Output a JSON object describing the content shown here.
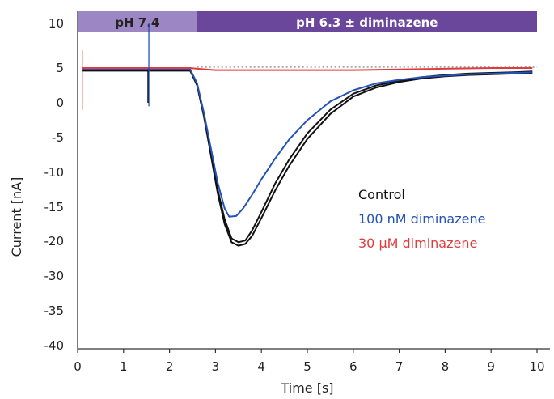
{
  "chart_data": {
    "type": "line",
    "xlabel": "Time [s]",
    "ylabel": "Current [nA]",
    "xlim": [
      0,
      10
    ],
    "x_ticks": [
      "0",
      "1",
      "2",
      "3",
      "4",
      "5",
      "6",
      "7",
      "8",
      "9",
      "10"
    ],
    "y_ticks": [
      {
        "value": 10,
        "label": "10"
      },
      {
        "value": 5,
        "label": "5"
      },
      {
        "value": 0,
        "label": "0"
      },
      {
        "value": -5,
        "label": "-5"
      },
      {
        "value": -10,
        "label": "-10"
      },
      {
        "value": -15,
        "label": "-15"
      },
      {
        "value": -20,
        "label": "-20"
      },
      {
        "value": -30,
        "label": "-30"
      },
      {
        "value": -35,
        "label": "-35"
      },
      {
        "value": -40,
        "label": "-40"
      }
    ],
    "grid": false,
    "bars": [
      {
        "label": "pH 7.4",
        "x_start": 0,
        "x_end": 2.6,
        "color": "#9d86c4",
        "text_color": "#222222"
      },
      {
        "label": "pH 6.3 ± diminazene",
        "x_start": 2.6,
        "x_end": 10,
        "color": "#6b479b",
        "text_color": "#ffffff"
      }
    ],
    "reference_line": {
      "y": 5.1,
      "style": "dotted",
      "color": "#999999"
    },
    "legend_position": "right",
    "legend": [
      {
        "label": "Control",
        "color": "#111111"
      },
      {
        "label": "100 nM diminazene",
        "color": "#2552b9"
      },
      {
        "label": "30 µM diminazene",
        "color": "#e03c3c"
      }
    ],
    "series": [
      {
        "color": "#111111",
        "x": [
          0.1,
          1.5,
          2.45,
          2.6,
          2.75,
          2.9,
          3.05,
          3.2,
          3.35,
          3.5,
          3.65,
          3.8,
          4.0,
          4.3,
          4.6,
          5.0,
          5.5,
          6.0,
          6.5,
          7.0,
          7.5,
          8.0,
          8.5,
          9.0,
          9.5,
          9.9
        ],
        "y": [
          4.6,
          4.6,
          4.6,
          2.5,
          -2.0,
          -7.5,
          -13.0,
          -17.5,
          -20.3,
          -21.3,
          -20.8,
          -19.2,
          -16.6,
          -12.6,
          -9.1,
          -5.2,
          -1.6,
          0.9,
          2.2,
          3.0,
          3.5,
          3.8,
          4.0,
          4.1,
          4.2,
          4.3
        ]
      },
      {
        "color": "#111111",
        "x": [
          0.1,
          1.5,
          2.45,
          2.6,
          2.75,
          2.9,
          3.05,
          3.2,
          3.35,
          3.5,
          3.65,
          3.8,
          4.0,
          4.3,
          4.6,
          5.0,
          5.5,
          6.0,
          6.5,
          7.0,
          7.5,
          8.0,
          8.5,
          9.0,
          9.5,
          9.9
        ],
        "y": [
          4.7,
          4.7,
          4.7,
          2.6,
          -1.8,
          -7.1,
          -12.5,
          -16.8,
          -19.6,
          -20.3,
          -19.9,
          -18.4,
          -15.7,
          -11.6,
          -8.2,
          -4.4,
          -1.0,
          1.3,
          2.5,
          3.2,
          3.7,
          4.0,
          4.2,
          4.3,
          4.4,
          4.5
        ]
      },
      {
        "color": "#2552b9",
        "x": [
          0.1,
          1.5,
          2.45,
          2.6,
          2.75,
          2.9,
          3.05,
          3.2,
          3.3,
          3.45,
          3.6,
          3.8,
          4.0,
          4.3,
          4.6,
          5.0,
          5.5,
          6.0,
          6.5,
          7.0,
          7.5,
          8.0,
          8.5,
          9.0,
          9.5,
          9.9
        ],
        "y": [
          4.8,
          4.8,
          4.8,
          2.8,
          -1.5,
          -6.5,
          -11.5,
          -15.2,
          -16.4,
          -16.3,
          -15.2,
          -13.2,
          -11.0,
          -8.0,
          -5.3,
          -2.5,
          0.2,
          1.8,
          2.8,
          3.3,
          3.7,
          3.9,
          4.1,
          4.2,
          4.3,
          4.4
        ]
      },
      {
        "color": "#e03c3c",
        "x": [
          0.1,
          1.5,
          2.45,
          2.6,
          2.8,
          3.0,
          4.0,
          5.0,
          6.0,
          7.0,
          8.0,
          9.0,
          9.9
        ],
        "y": [
          5.0,
          5.0,
          5.0,
          4.9,
          4.8,
          4.7,
          4.7,
          4.7,
          4.7,
          4.8,
          4.9,
          5.0,
          5.0
        ]
      }
    ]
  }
}
